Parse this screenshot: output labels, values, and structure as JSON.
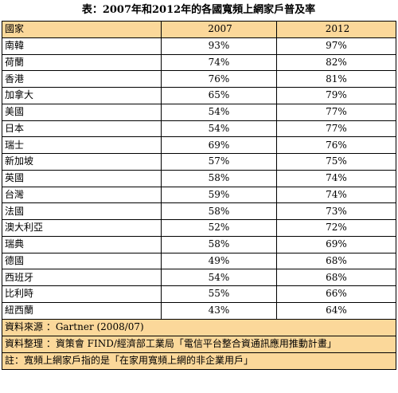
{
  "title": "表：2007年和2012年的各國寬頻上網家戶普及率",
  "headers": [
    "國家",
    "2007",
    "2012"
  ],
  "rows": [
    {
      "country": "南韓",
      "y2007": "93%",
      "y2012": "97%"
    },
    {
      "country": "荷蘭",
      "y2007": "74%",
      "y2012": "82%"
    },
    {
      "country": "香港",
      "y2007": "76%",
      "y2012": "81%"
    },
    {
      "country": "加拿大",
      "y2007": "65%",
      "y2012": "79%"
    },
    {
      "country": "美國",
      "y2007": "54%",
      "y2012": "77%"
    },
    {
      "country": "日本",
      "y2007": "54%",
      "y2012": "77%"
    },
    {
      "country": "瑞士",
      "y2007": "69%",
      "y2012": "76%"
    },
    {
      "country": "新加坡",
      "y2007": "57%",
      "y2012": "75%"
    },
    {
      "country": "英國",
      "y2007": "58%",
      "y2012": "74%"
    },
    {
      "country": "台灣",
      "y2007": "59%",
      "y2012": "74%"
    },
    {
      "country": "法國",
      "y2007": "58%",
      "y2012": "73%"
    },
    {
      "country": "澳大利亞",
      "y2007": "52%",
      "y2012": "72%"
    },
    {
      "country": "瑞典",
      "y2007": "58%",
      "y2012": "69%"
    },
    {
      "country": "德國",
      "y2007": "49%",
      "y2012": "68%"
    },
    {
      "country": "西班牙",
      "y2007": "54%",
      "y2012": "68%"
    },
    {
      "country": "比利時",
      "y2007": "55%",
      "y2012": "66%"
    },
    {
      "country": "紐西蘭",
      "y2007": "43%",
      "y2012": "64%"
    }
  ],
  "footer": {
    "source": "資料來源 ：Gartner (2008/07)",
    "compiled": "資料整理 ：資策會 FIND/經濟部工業局「電信平台整合資通訊應用推動計畫」",
    "note": "註：寬頻上網家戶指的是「在家用寬頻上網的非企業用戶」"
  },
  "colors": {
    "header_bg": "#fbd89a"
  }
}
